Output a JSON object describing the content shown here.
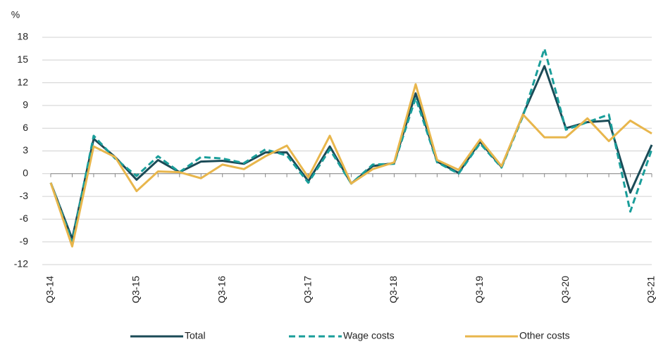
{
  "chart_data": {
    "type": "line",
    "y_label": "%",
    "categories": [
      "Q3-14",
      null,
      null,
      null,
      "Q3-15",
      null,
      null,
      null,
      "Q3-16",
      null,
      null,
      null,
      "Q3-17",
      null,
      null,
      null,
      "Q3-18",
      null,
      null,
      null,
      "Q3-19",
      null,
      null,
      null,
      "Q3-20",
      null,
      null,
      null,
      "Q3-21"
    ],
    "series": [
      {
        "name": "Total",
        "color": "#1b4b57",
        "dashed": false,
        "values": [
          -1.2,
          -8.6,
          4.6,
          2.2,
          -0.8,
          1.8,
          0.2,
          1.6,
          1.7,
          1.3,
          2.8,
          2.8,
          -1.0,
          3.6,
          -1.3,
          1.0,
          1.4,
          10.6,
          1.6,
          0.1,
          4.2,
          0.9,
          7.8,
          14.2,
          6.0,
          6.8,
          7.0,
          -2.5,
          3.8
        ]
      },
      {
        "name": "Wage costs",
        "color": "#1a9e9a",
        "dashed": true,
        "values": [
          -1.2,
          -9.0,
          5.0,
          2.0,
          -0.3,
          2.3,
          0.2,
          2.2,
          2.0,
          1.4,
          3.2,
          2.4,
          -1.2,
          3.2,
          -1.3,
          1.2,
          1.3,
          10.0,
          1.5,
          0.0,
          4.0,
          0.8,
          7.6,
          16.5,
          5.8,
          6.8,
          7.8,
          -5.0,
          3.2
        ]
      },
      {
        "name": "Other costs",
        "color": "#e8b64c",
        "dashed": false,
        "values": [
          -1.2,
          -9.6,
          3.6,
          2.2,
          -2.3,
          0.3,
          0.2,
          -0.6,
          1.2,
          0.6,
          2.3,
          3.7,
          -0.5,
          5.0,
          -1.3,
          0.6,
          1.5,
          11.8,
          1.8,
          0.5,
          4.5,
          1.0,
          7.8,
          4.8,
          4.8,
          7.3,
          4.3,
          7.0,
          5.3
        ]
      }
    ],
    "ylim": [
      -12,
      18
    ],
    "yticks": [
      -12,
      -9,
      -6,
      -3,
      0,
      3,
      6,
      9,
      12,
      15,
      18
    ],
    "grid": true,
    "legend": "bottom"
  }
}
